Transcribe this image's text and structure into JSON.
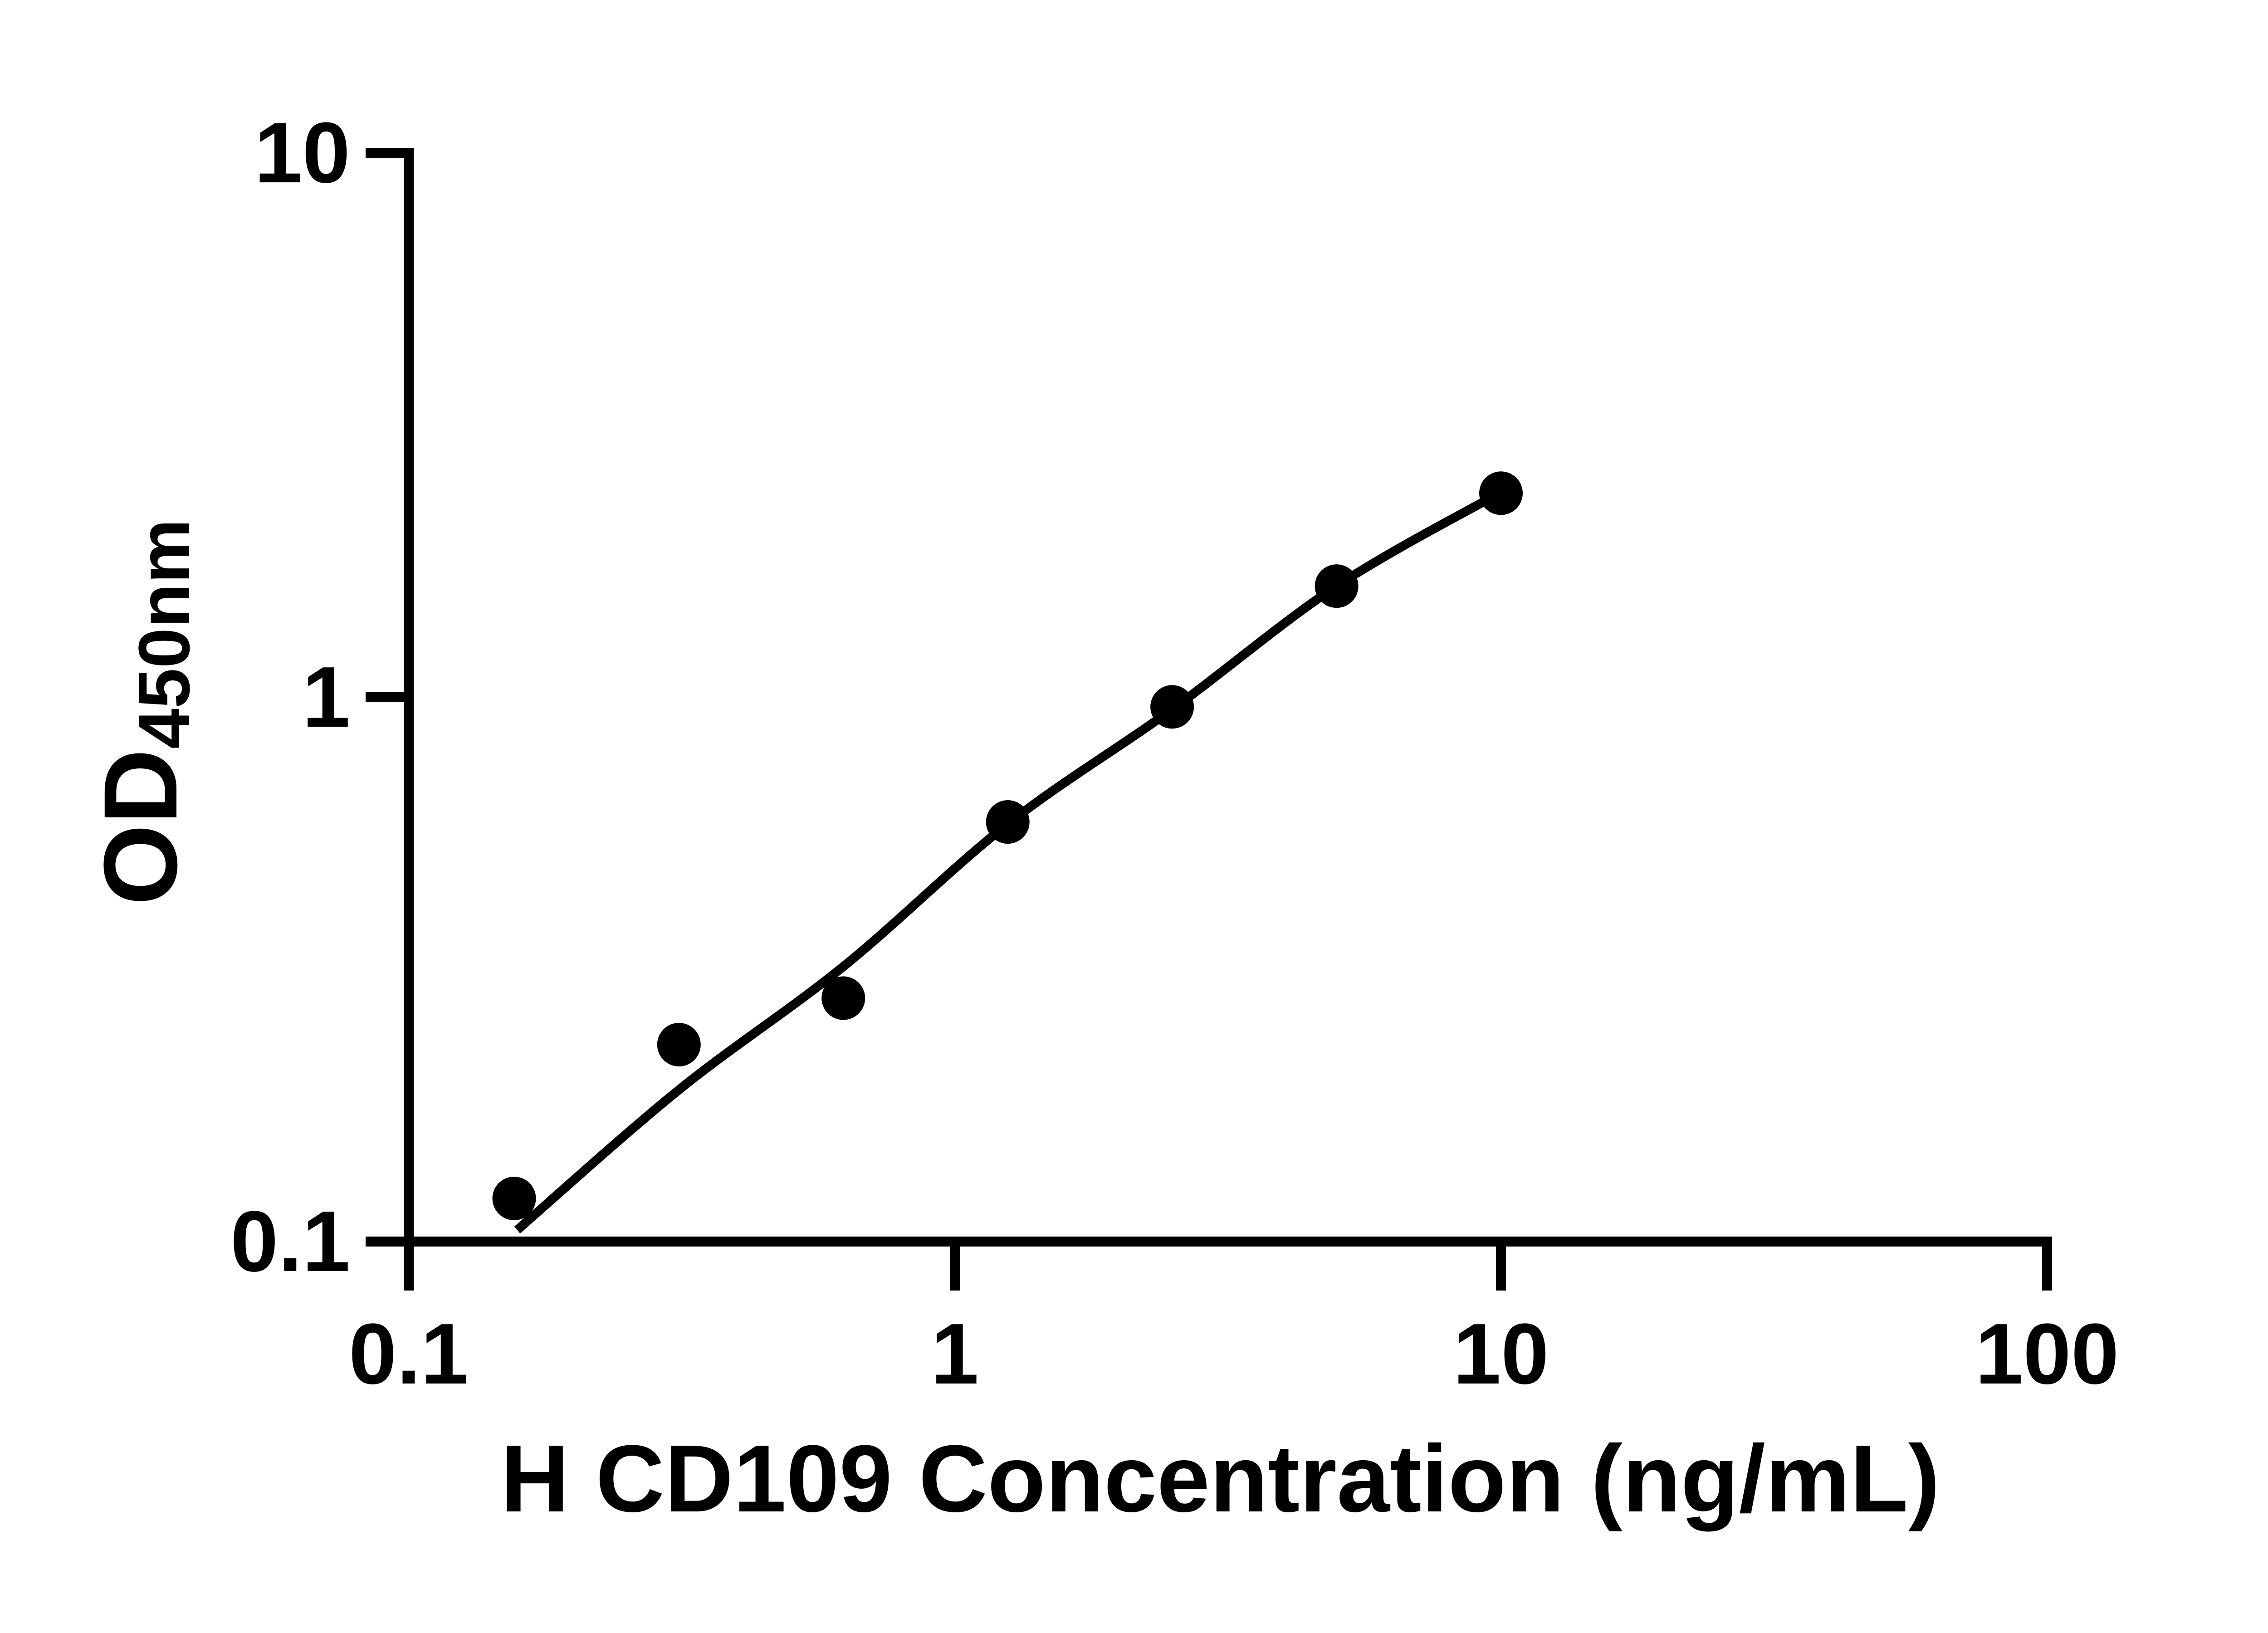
{
  "chart_data": {
    "type": "scatter",
    "title": "",
    "xlabel": "H CD109 Concentration (ng/mL)",
    "ylabel": "OD450nm",
    "ylabel_main": "OD",
    "ylabel_sub": "450nm",
    "xscale": "log",
    "yscale": "log",
    "xlim": [
      0.1,
      100
    ],
    "ylim": [
      0.1,
      10
    ],
    "grid": false,
    "legend_position": "none",
    "marker_color": "#000000",
    "line_color": "#000000",
    "axis_color": "#000000",
    "background_color": "#ffffff",
    "x_ticks": [
      {
        "value": 0.1,
        "label": "0.1"
      },
      {
        "value": 1,
        "label": "1"
      },
      {
        "value": 10,
        "label": "10"
      },
      {
        "value": 100,
        "label": "100"
      }
    ],
    "y_ticks": [
      {
        "value": 0.1,
        "label": "0.1"
      },
      {
        "value": 1,
        "label": "1"
      },
      {
        "value": 10,
        "label": "10"
      }
    ],
    "series": [
      {
        "marker": "filled-circle",
        "color": "#000000",
        "points": [
          {
            "x": 0.156,
            "y": 0.12
          },
          {
            "x": 0.3125,
            "y": 0.23
          },
          {
            "x": 0.625,
            "y": 0.28
          },
          {
            "x": 1.25,
            "y": 0.59
          },
          {
            "x": 2.5,
            "y": 0.96
          },
          {
            "x": 5,
            "y": 1.6
          },
          {
            "x": 10,
            "y": 2.37
          }
        ]
      }
    ],
    "fit_curve": {
      "color": "#000000",
      "points": [
        {
          "x": 0.158,
          "y": 0.105
        },
        {
          "x": 0.3125,
          "y": 0.19
        },
        {
          "x": 0.625,
          "y": 0.32
        },
        {
          "x": 1.25,
          "y": 0.585
        },
        {
          "x": 2.5,
          "y": 0.95
        },
        {
          "x": 5,
          "y": 1.6
        },
        {
          "x": 10,
          "y": 2.38
        }
      ]
    }
  }
}
